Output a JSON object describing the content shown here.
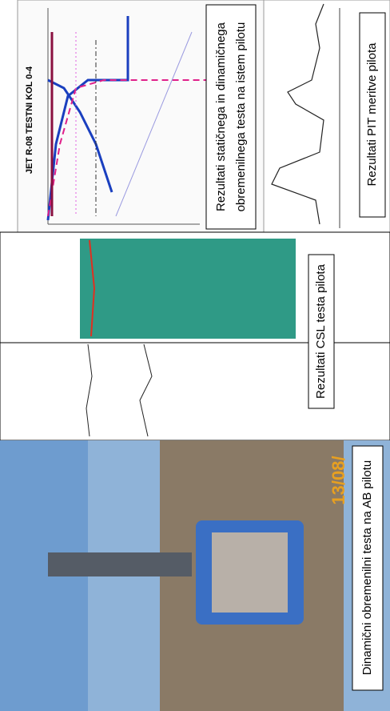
{
  "static_test": {
    "chart_title": "JET R-08 TESTNI KOL 0-4",
    "caption": [
      "Rezultati statičnega in dinamičnega",
      "obremenilnega testa na istem pilotu"
    ]
  },
  "pit_test": {
    "caption": "Rezultati PIT meritve pilota"
  },
  "csl_test": {
    "caption": "Rezultati CSL testa pilota"
  },
  "photo": {
    "date_stamp": "13/08/",
    "caption": "Dinamični obremenilni testa na AB pilotu"
  }
}
